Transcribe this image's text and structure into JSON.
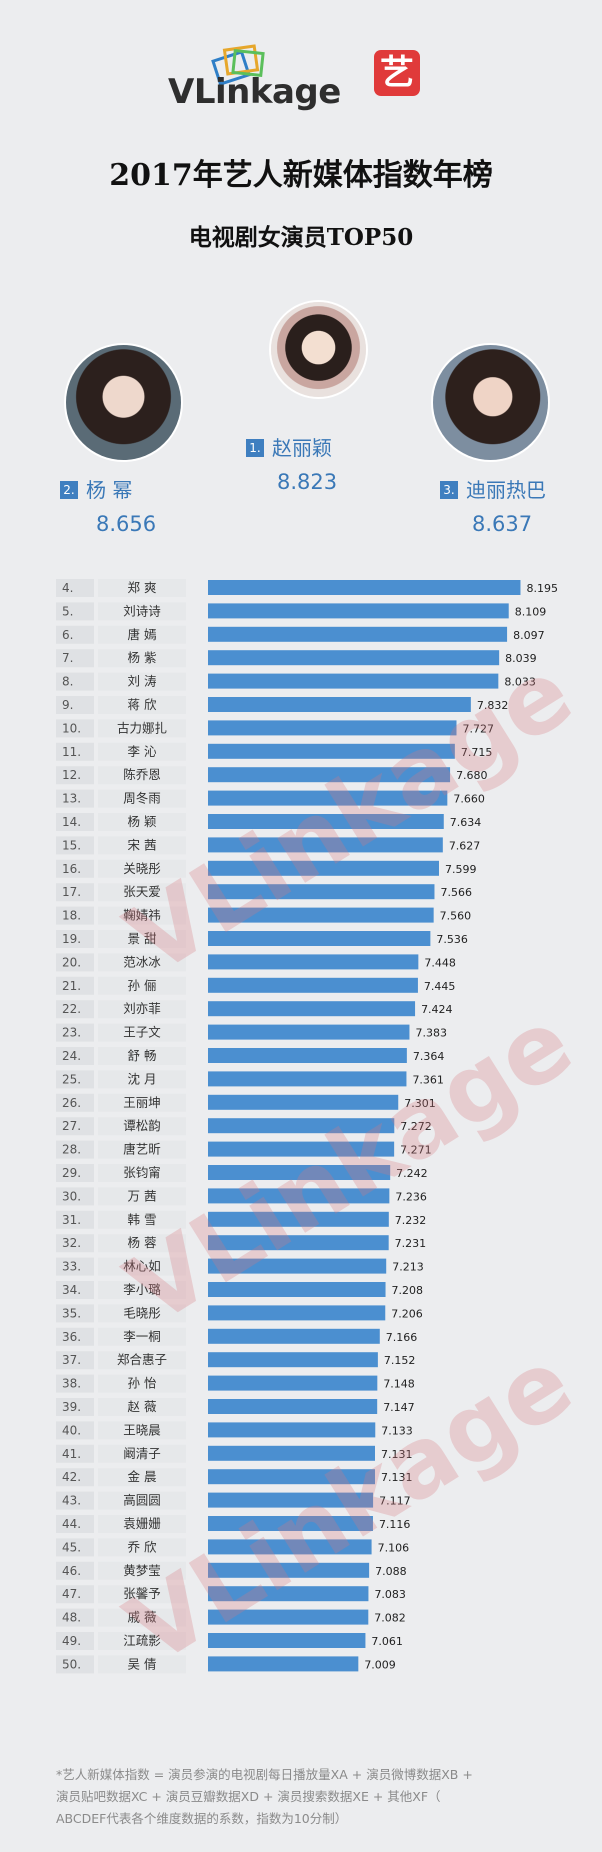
{
  "brand": {
    "logo_text": "VLinkage",
    "badge_char": "艺",
    "colors": {
      "bar": "#4b8fd0",
      "accent_blue": "#3a78b7",
      "badge_red": "#e03a3a",
      "watermark": "#d6787d"
    }
  },
  "header": {
    "title": "2017年艺人新媒体指数年榜",
    "subtitle": "电视剧女演员TOP50"
  },
  "podium": {
    "first": {
      "rank": "1.",
      "name": "赵丽颖",
      "score": "8.823"
    },
    "second": {
      "rank": "2.",
      "name": "杨  幂",
      "score": "8.656"
    },
    "third": {
      "rank": "3.",
      "name": "迪丽热巴",
      "score": "8.637"
    }
  },
  "watermark_text": "VLinkage",
  "chart_data": {
    "type": "bar",
    "orientation": "horizontal",
    "title": "电视剧女演员TOP50",
    "categories": [
      "郑 爽",
      "刘诗诗",
      "唐 嫣",
      "杨 紫",
      "刘 涛",
      "蒋 欣",
      "古力娜扎",
      "李 沁",
      "陈乔恩",
      "周冬雨",
      "杨 颖",
      "宋 茜",
      "关晓彤",
      "张天爱",
      "鞠婧祎",
      "景 甜",
      "范冰冰",
      "孙 俪",
      "刘亦菲",
      "王子文",
      "舒 畅",
      "沈 月",
      "王丽坤",
      "谭松韵",
      "唐艺昕",
      "张钧甯",
      "万 茜",
      "韩 雪",
      "杨 蓉",
      "林心如",
      "李小璐",
      "毛晓彤",
      "李一桐",
      "郑合惠子",
      "孙 怡",
      "赵 薇",
      "王晓晨",
      "阚清子",
      "金 晨",
      "高圆圆",
      "袁姗姗",
      "乔 欣",
      "黄梦莹",
      "张馨予",
      "戚 薇",
      "江疏影",
      "吴 倩"
    ],
    "ranks": [
      "4.",
      "5.",
      "6.",
      "7.",
      "8.",
      "9.",
      "10.",
      "11.",
      "12.",
      "13.",
      "14.",
      "15.",
      "16.",
      "17.",
      "18.",
      "19.",
      "20.",
      "21.",
      "22.",
      "23.",
      "24.",
      "25.",
      "26.",
      "27.",
      "28.",
      "29.",
      "30.",
      "31.",
      "32.",
      "33.",
      "34.",
      "35.",
      "36.",
      "37.",
      "38.",
      "39.",
      "40.",
      "41.",
      "42.",
      "43.",
      "44.",
      "45.",
      "46.",
      "47.",
      "48.",
      "49.",
      "50."
    ],
    "values": [
      8.195,
      8.109,
      8.097,
      8.039,
      8.033,
      7.832,
      7.727,
      7.715,
      7.68,
      7.66,
      7.634,
      7.627,
      7.599,
      7.566,
      7.56,
      7.536,
      7.448,
      7.445,
      7.424,
      7.383,
      7.364,
      7.361,
      7.301,
      7.272,
      7.271,
      7.242,
      7.236,
      7.232,
      7.231,
      7.213,
      7.208,
      7.206,
      7.166,
      7.152,
      7.148,
      7.147,
      7.133,
      7.131,
      7.131,
      7.117,
      7.116,
      7.106,
      7.088,
      7.083,
      7.082,
      7.061,
      7.009
    ],
    "value_labels": [
      "8.195",
      "8.109",
      "8.097",
      "8.039",
      "8.033",
      "7.832",
      "7.727",
      "7.715",
      "7.680",
      "7.660",
      "7.634",
      "7.627",
      "7.599",
      "7.566",
      "7.560",
      "7.536",
      "7.448",
      "7.445",
      "7.424",
      "7.383",
      "7.364",
      "7.361",
      "7.301",
      "7.272",
      "7.271",
      "7.242",
      "7.236",
      "7.232",
      "7.231",
      "7.213",
      "7.208",
      "7.206",
      "7.166",
      "7.152",
      "7.148",
      "7.147",
      "7.133",
      "7.131",
      "7.131",
      "7.117",
      "7.116",
      "7.106",
      "7.088",
      "7.083",
      "7.082",
      "7.061",
      "7.009"
    ],
    "xlim": [
      5.5,
      8.25
    ],
    "grid": false,
    "legend": "none"
  },
  "footnote": {
    "line1": "*艺人新媒体指数 = 演员参演的电视剧每日播放量XA + 演员微博数据XB +",
    "line2": "演员贴吧数据XC + 演员豆瓣数据XD + 演员搜索数据XE + 其他XF（",
    "line3": "ABCDEF代表各个维度数据的系数，指数为10分制）"
  }
}
